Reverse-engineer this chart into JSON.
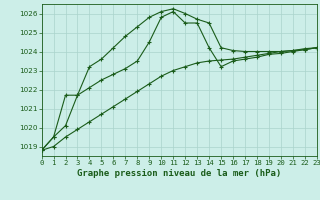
{
  "title": "Graphe pression niveau de la mer (hPa)",
  "xlim": [
    0,
    23
  ],
  "ylim": [
    1018.5,
    1026.5
  ],
  "yticks": [
    1019,
    1020,
    1021,
    1022,
    1023,
    1024,
    1025,
    1026
  ],
  "xticks": [
    0,
    1,
    2,
    3,
    4,
    5,
    6,
    7,
    8,
    9,
    10,
    11,
    12,
    13,
    14,
    15,
    16,
    17,
    18,
    19,
    20,
    21,
    22,
    23
  ],
  "background_color": "#cceee8",
  "grid_color": "#aad4cc",
  "line_color": "#1a5c1a",
  "line1": [
    1018.8,
    1019.5,
    1020.1,
    1021.7,
    1023.2,
    1023.6,
    1024.2,
    1024.8,
    1025.3,
    1025.8,
    1026.1,
    1026.25,
    1026.0,
    1025.7,
    1025.5,
    1024.2,
    1024.05,
    1024.0,
    1024.0,
    1024.0,
    1024.0,
    1024.05,
    1024.15,
    1024.2
  ],
  "line2": [
    1018.8,
    1019.5,
    1021.7,
    1021.7,
    1022.1,
    1022.5,
    1022.8,
    1023.1,
    1023.5,
    1024.5,
    1025.8,
    1026.1,
    1025.5,
    1025.5,
    1024.2,
    1023.2,
    1023.5,
    1023.6,
    1023.7,
    1023.85,
    1023.9,
    1024.0,
    1024.1,
    1024.2
  ],
  "line3": [
    1018.8,
    1019.0,
    1019.5,
    1019.9,
    1020.3,
    1020.7,
    1021.1,
    1021.5,
    1021.9,
    1022.3,
    1022.7,
    1023.0,
    1023.2,
    1023.4,
    1023.5,
    1023.55,
    1023.6,
    1023.7,
    1023.8,
    1023.9,
    1024.0,
    1024.05,
    1024.1,
    1024.2
  ],
  "xlabel_fontsize": 6.5,
  "ylabel_fontsize": 5.5,
  "tick_labelsize": 5.2
}
